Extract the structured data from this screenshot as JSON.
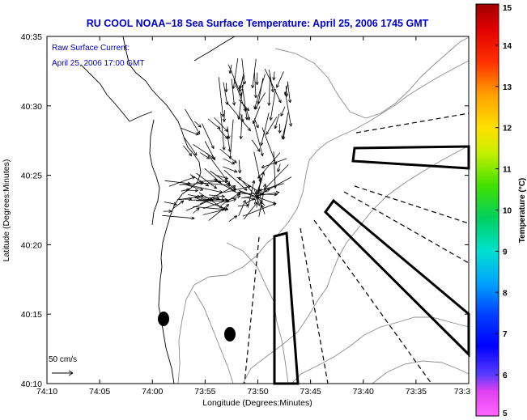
{
  "chart_data": {
    "type": "quiver-map",
    "title": "RU COOL  NOAA−18  Sea Surface Temperature:  April 25, 2006 1745 GMT",
    "annotation_lines": [
      "Raw Surface Current:",
      "April 25, 2006 17:00 GMT"
    ],
    "xlabel": "Longitude (Degrees:Minutes)",
    "ylabel": "Latitude (Degrees:Minutes)",
    "x_ticks": [
      "74:10",
      "74:05",
      "74:00",
      "73:55",
      "73:50",
      "73:45",
      "73:40",
      "73:35",
      "73:3"
    ],
    "y_ticks": [
      "40:10",
      "40:15",
      "40:20",
      "40:25",
      "40:30",
      "40:35"
    ],
    "xlim_minutes_west": [
      10,
      30
    ],
    "ylim_minutes": [
      10,
      35
    ],
    "scale_arrow_label": "50 cm/s",
    "colorbar": {
      "label": "Temperature (°C)",
      "range": [
        5,
        15
      ],
      "ticks": [
        "5",
        "6",
        "7",
        "8",
        "9",
        "10",
        "11",
        "12",
        "13",
        "14",
        "15"
      ]
    },
    "current_region": {
      "description_center": [
        53.0,
        25.5
      ],
      "vector_count_approx": 140
    },
    "land_color": "#ffffff",
    "vector_color": "#000000",
    "coastline_color": "#808080"
  }
}
